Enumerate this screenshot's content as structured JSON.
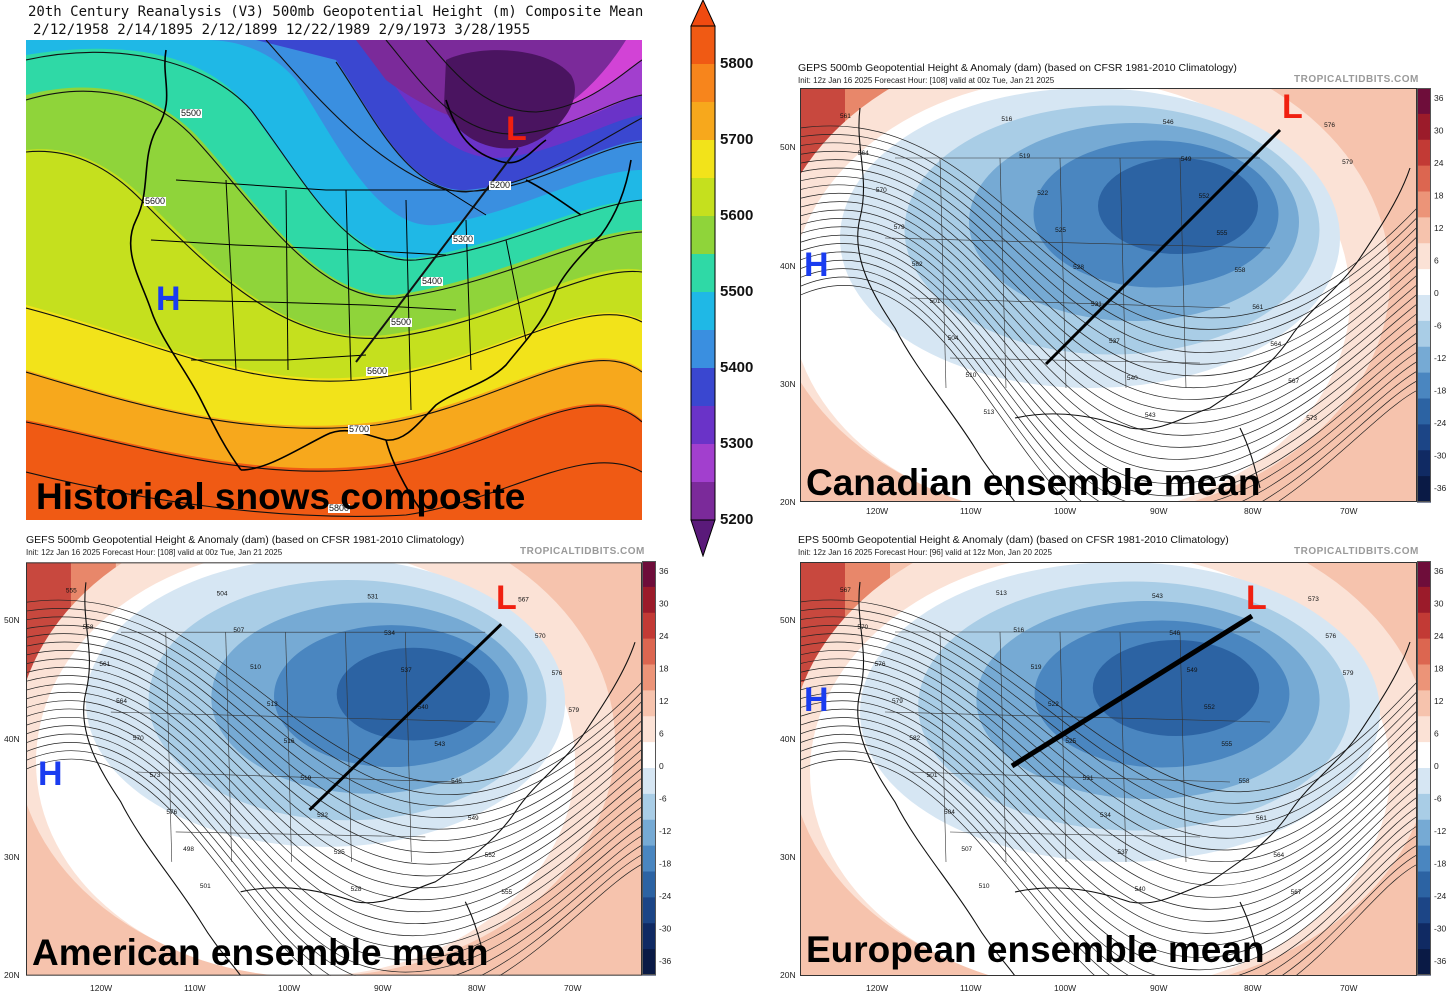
{
  "historical": {
    "title_line1": "20th Century Reanalysis (V3)  500mb Geopotential Height (m) Composite Mean",
    "title_line2": "2/12/1958  2/14/1895  2/12/1899  12/22/1989  2/9/1973  3/28/1955",
    "caption": "Historical snows composite",
    "high_label": "H",
    "low_label": "L",
    "contour_labels": [
      "5500",
      "5600",
      "5200",
      "5300",
      "5400",
      "5500",
      "5600",
      "5700",
      "5800"
    ],
    "colorbar_labels": [
      "5800",
      "5700",
      "5600",
      "5500",
      "5400",
      "5300",
      "5200"
    ],
    "colors": [
      "#7b2a9a",
      "#3a47d0",
      "#1fb8e6",
      "#2fd9a6",
      "#8fd43a",
      "#f2e31a",
      "#f7a81c",
      "#f05a14"
    ]
  },
  "maps": [
    {
      "id": "geps",
      "title": "GEPS 500mb Geopotential Height & Anomaly (dam) (based on CFSR 1981-2010 Climatology)",
      "init": "Init: 12z Jan 16 2025   Forecast Hour: [108]   valid at 00z Tue, Jan 21 2025",
      "watermark": "TROPICALTIDBITS.COM",
      "caption": "Canadian ensemble mean",
      "high_label": "H",
      "low_label": "L",
      "contour_labels": [
        "561",
        "564",
        "570",
        "579",
        "582",
        "501",
        "504",
        "510",
        "513",
        "516",
        "519",
        "522",
        "525",
        "528",
        "531",
        "537",
        "540",
        "543",
        "546",
        "549",
        "552",
        "555",
        "558",
        "561",
        "564",
        "567",
        "573",
        "576",
        "579"
      ],
      "lat_labels": [
        "50N",
        "40N",
        "30N",
        "20N"
      ],
      "lon_labels": [
        "120W",
        "110W",
        "100W",
        "90W",
        "80W",
        "70W"
      ]
    },
    {
      "id": "gefs",
      "title": "GEFS 500mb Geopotential Height & Anomaly (dam) (based on CFSR 1981-2010 Climatology)",
      "init": "Init: 12z Jan 16 2025   Forecast Hour: [108]   valid at 00z Tue, Jan 21 2025",
      "watermark": "TROPICALTIDBITS.COM",
      "caption": "American ensemble mean",
      "high_label": "H",
      "low_label": "L",
      "contour_labels": [
        "555",
        "558",
        "561",
        "564",
        "570",
        "573",
        "576",
        "498",
        "501",
        "504",
        "507",
        "510",
        "513",
        "516",
        "519",
        "522",
        "525",
        "528",
        "531",
        "534",
        "537",
        "540",
        "543",
        "546",
        "549",
        "552",
        "555",
        "567",
        "570",
        "576",
        "579"
      ],
      "lat_labels": [
        "50N",
        "40N",
        "30N",
        "20N"
      ],
      "lon_labels": [
        "120W",
        "110W",
        "100W",
        "90W",
        "80W",
        "70W"
      ]
    },
    {
      "id": "eps",
      "title": "EPS 500mb Geopotential Height & Anomaly (dam) (based on CFSR 1981-2010 Climatology)",
      "init": "Init: 12z Jan 16 2025   Forecast Hour: [96]   valid at 12z Mon, Jan 20 2025",
      "watermark": "TROPICALTIDBITS.COM",
      "caption": "European ensemble mean",
      "high_label": "H",
      "low_label": "L",
      "contour_labels": [
        "567",
        "570",
        "576",
        "579",
        "582",
        "501",
        "504",
        "507",
        "510",
        "513",
        "516",
        "519",
        "522",
        "525",
        "531",
        "534",
        "537",
        "540",
        "543",
        "546",
        "549",
        "552",
        "555",
        "558",
        "561",
        "564",
        "567",
        "573",
        "576",
        "579"
      ],
      "lat_labels": [
        "50N",
        "40N",
        "30N",
        "20N"
      ],
      "lon_labels": [
        "120W",
        "110W",
        "100W",
        "90W",
        "80W",
        "70W"
      ]
    }
  ],
  "anomaly_scale": {
    "labels": [
      "36",
      "30",
      "24",
      "18",
      "12",
      "6",
      "0",
      "-6",
      "-12",
      "-18",
      "-24",
      "-30",
      "-36"
    ],
    "colors": [
      "#6e0d3a",
      "#9b1b2a",
      "#c23a35",
      "#dc6650",
      "#ec9478",
      "#f6c3ad",
      "#fbe2d6",
      "#ffffff",
      "#d6e6f3",
      "#a9cde6",
      "#76aad4",
      "#4a86c0",
      "#2c63a3",
      "#1c4586",
      "#102a63",
      "#0a1a45"
    ]
  }
}
